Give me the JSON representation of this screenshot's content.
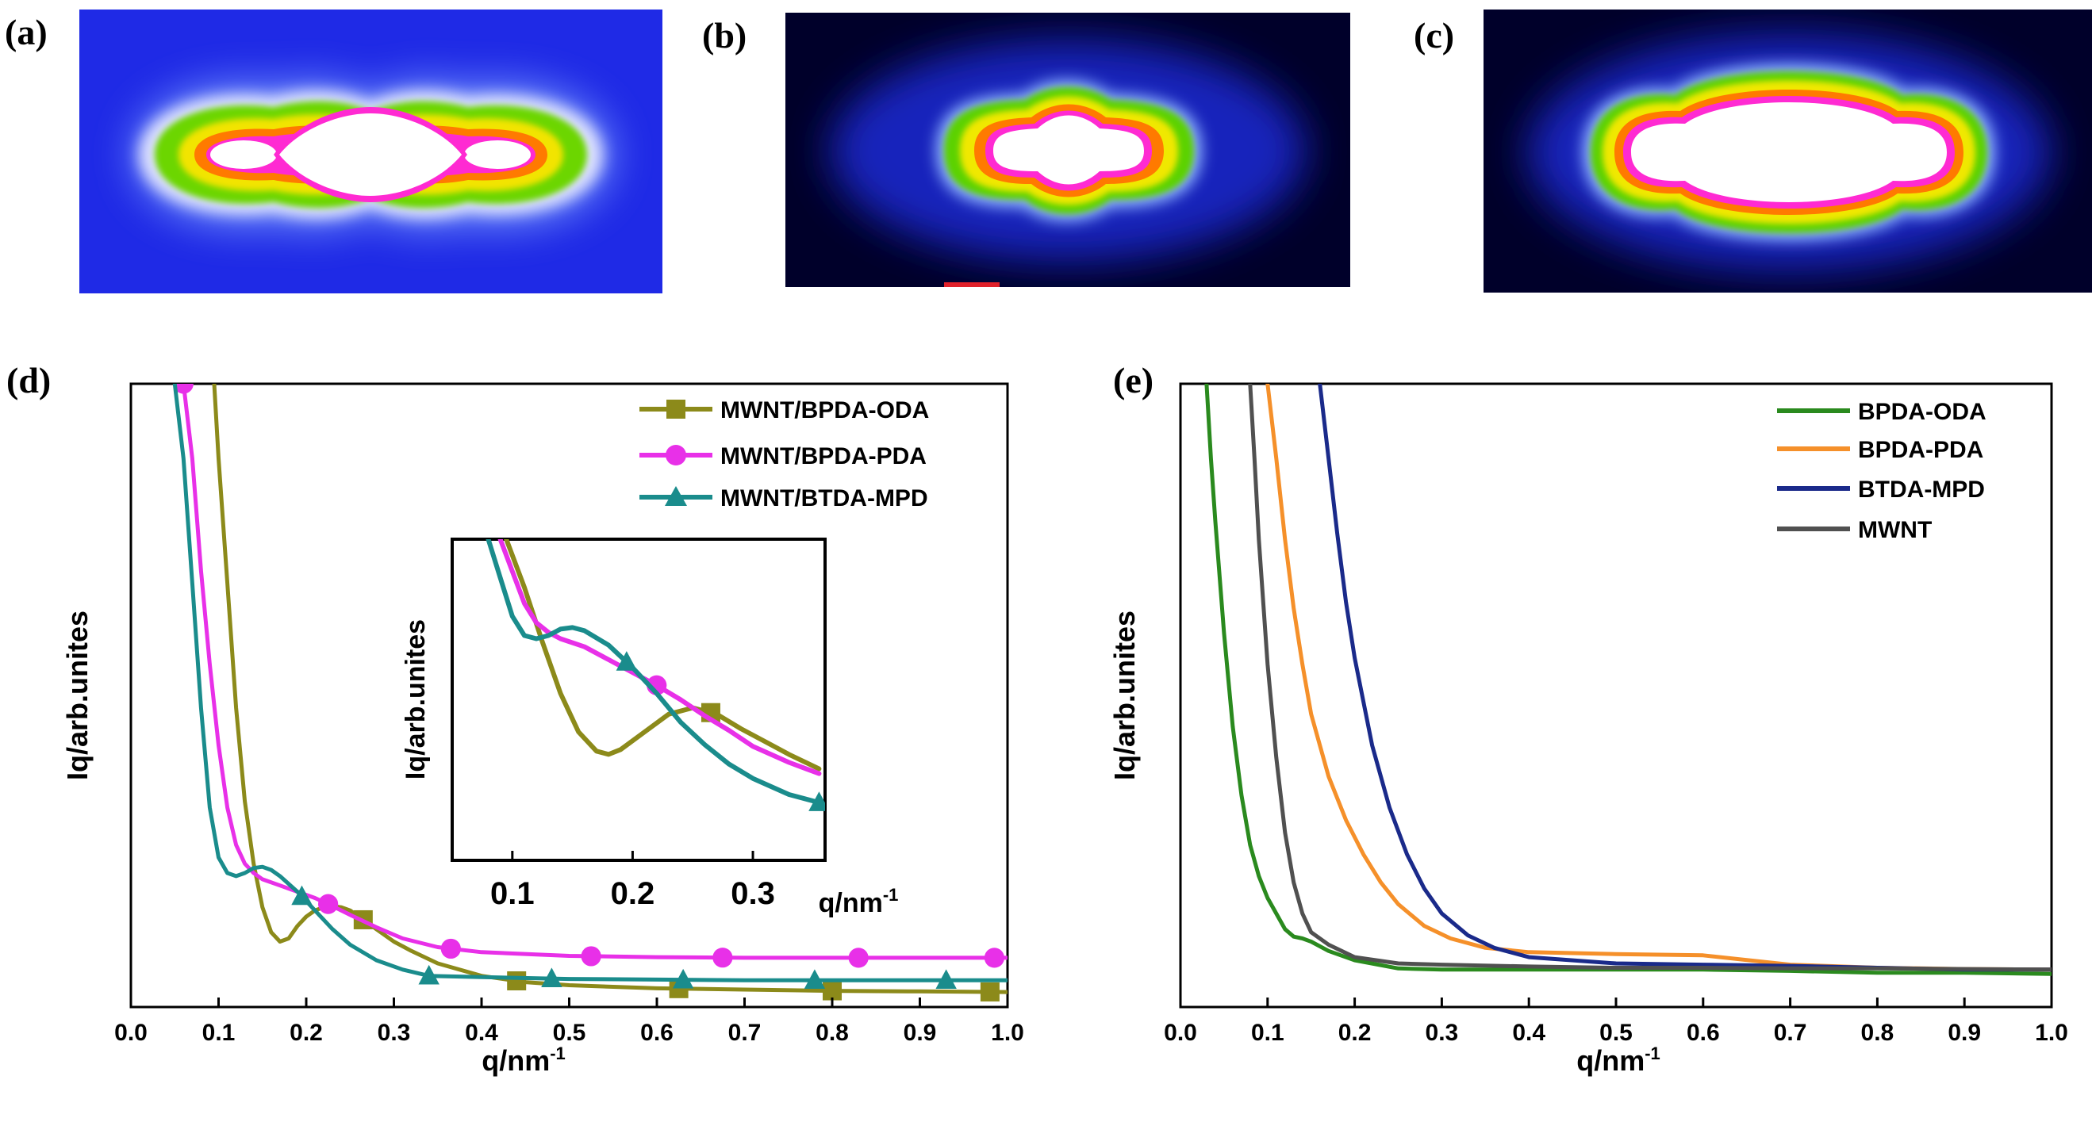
{
  "panels": {
    "a": {
      "label": "(a)"
    },
    "b": {
      "label": "(b)"
    },
    "c": {
      "label": "(c)"
    },
    "d": {
      "label": "(d)"
    },
    "e": {
      "label": "(e)"
    }
  },
  "chart_data": [
    {
      "id": "d",
      "type": "line",
      "title": "",
      "xlabel": "q/nm",
      "xlabel_sup": "-1",
      "ylabel": "Iq/arb.unites",
      "xlim": [
        0.0,
        1.0
      ],
      "ylim": [
        0,
        100
      ],
      "xticks": [
        "0.0",
        "0.1",
        "0.2",
        "0.3",
        "0.4",
        "0.5",
        "0.6",
        "0.7",
        "0.8",
        "0.9",
        "1.0"
      ],
      "legend_position": "top-right",
      "series": [
        {
          "name": "MWNT/BPDA-ODA",
          "color": "#8c8a1a",
          "marker": "square",
          "x": [
            0.095,
            0.1,
            0.11,
            0.12,
            0.13,
            0.14,
            0.15,
            0.16,
            0.17,
            0.18,
            0.19,
            0.2,
            0.21,
            0.22,
            0.23,
            0.24,
            0.25,
            0.26,
            0.27,
            0.28,
            0.3,
            0.32,
            0.35,
            0.4,
            0.45,
            0.5,
            0.6,
            0.7,
            0.8,
            0.9,
            1.0
          ],
          "y": [
            100,
            88,
            68,
            48,
            33,
            23,
            16,
            12,
            10.5,
            11,
            13,
            14.5,
            15.5,
            16,
            16.2,
            16,
            15.5,
            14.5,
            13.5,
            12.5,
            10.5,
            9,
            7,
            5,
            4,
            3.5,
            3,
            2.8,
            2.6,
            2.5,
            2.4
          ],
          "marker_x": [
            0.265,
            0.44,
            0.625,
            0.8,
            0.98
          ]
        },
        {
          "name": "MWNT/BPDA-PDA",
          "color": "#e830e8",
          "marker": "circle",
          "x": [
            0.06,
            0.07,
            0.08,
            0.09,
            0.1,
            0.11,
            0.12,
            0.13,
            0.14,
            0.15,
            0.17,
            0.19,
            0.21,
            0.23,
            0.25,
            0.28,
            0.31,
            0.35,
            0.4,
            0.5,
            0.6,
            0.7,
            0.8,
            0.9,
            1.0
          ],
          "y": [
            100,
            88,
            70,
            55,
            42,
            32,
            26,
            23,
            21.5,
            20.5,
            19.5,
            18.5,
            17.5,
            16.2,
            14.8,
            12.8,
            11,
            9.6,
            8.8,
            8.2,
            8,
            7.9,
            7.9,
            7.9,
            7.9
          ],
          "marker_x": [
            0.06,
            0.225,
            0.365,
            0.525,
            0.675,
            0.83,
            0.985
          ]
        },
        {
          "name": "MWNT/BTDA-MPD",
          "color": "#1a8c8c",
          "marker": "triangle",
          "x": [
            0.05,
            0.06,
            0.07,
            0.08,
            0.09,
            0.1,
            0.11,
            0.12,
            0.13,
            0.14,
            0.15,
            0.16,
            0.17,
            0.19,
            0.21,
            0.23,
            0.25,
            0.28,
            0.31,
            0.34,
            0.4,
            0.5,
            0.6,
            0.7,
            0.8,
            0.9,
            1.0
          ],
          "y": [
            100,
            88,
            68,
            48,
            32,
            24,
            21.5,
            21,
            21.5,
            22.3,
            22.5,
            22,
            21,
            18.5,
            15.5,
            12.5,
            10,
            7.5,
            6,
            5,
            4.8,
            4.5,
            4.4,
            4.3,
            4.3,
            4.3,
            4.3
          ],
          "marker_x": [
            0.195,
            0.34,
            0.48,
            0.63,
            0.78,
            0.93
          ]
        }
      ],
      "inset": {
        "xlabel": "q/nm",
        "xlabel_sup": "-1",
        "ylabel": "Iq/arb.unites",
        "xlim": [
          0.05,
          0.36
        ],
        "ylim": [
          0,
          100
        ],
        "xticks": [
          "0.1",
          "0.2",
          "0.3"
        ],
        "series": [
          {
            "name": "MWNT/BPDA-ODA",
            "color": "#8c8a1a",
            "marker": "square",
            "x": [
              0.095,
              0.11,
              0.125,
              0.14,
              0.155,
              0.17,
              0.18,
              0.19,
              0.21,
              0.23,
              0.25,
              0.27,
              0.29,
              0.31,
              0.33,
              0.355
            ],
            "y": [
              100,
              85,
              68,
              52,
              40,
              34,
              33,
              34.5,
              40,
              45.5,
              47.5,
              45.5,
              41,
              37,
              33,
              28.5
            ],
            "marker_x": [
              0.265
            ]
          },
          {
            "name": "MWNT/BPDA-PDA",
            "color": "#e830e8",
            "marker": "circle",
            "x": [
              0.09,
              0.1,
              0.11,
              0.12,
              0.13,
              0.14,
              0.16,
              0.18,
              0.2,
              0.22,
              0.24,
              0.26,
              0.28,
              0.3,
              0.33,
              0.355
            ],
            "y": [
              100,
              90,
              80,
              74,
              71,
              69,
              66.5,
              62.5,
              58.5,
              54.5,
              50,
              45,
              40.5,
              35.5,
              30.5,
              27
            ],
            "marker_x": [
              0.22
            ]
          },
          {
            "name": "MWNT/BTDA-MPD",
            "color": "#1a8c8c",
            "marker": "triangle",
            "x": [
              0.08,
              0.09,
              0.1,
              0.11,
              0.12,
              0.13,
              0.14,
              0.15,
              0.16,
              0.18,
              0.2,
              0.22,
              0.24,
              0.26,
              0.28,
              0.3,
              0.33,
              0.355
            ],
            "y": [
              100,
              88,
              76,
              70,
              69,
              70,
              72,
              72.5,
              71.5,
              67,
              60,
              52,
              43,
              36,
              30,
              25.5,
              20.5,
              18
            ],
            "marker_x": [
              0.195,
              0.355
            ]
          }
        ]
      }
    },
    {
      "id": "e",
      "type": "line",
      "title": "",
      "xlabel": "q/nm",
      "xlabel_sup": "-1",
      "ylabel": "Iq/arb.unites",
      "xlim": [
        0.0,
        1.0
      ],
      "ylim": [
        0,
        100
      ],
      "xticks": [
        "0.0",
        "0.1",
        "0.2",
        "0.3",
        "0.4",
        "0.5",
        "0.6",
        "0.7",
        "0.8",
        "0.9",
        "1.0"
      ],
      "legend_position": "top-right",
      "series": [
        {
          "name": "BPDA-ODA",
          "color": "#2a8a1e",
          "x": [
            0.03,
            0.035,
            0.04,
            0.05,
            0.06,
            0.07,
            0.08,
            0.09,
            0.1,
            0.11,
            0.12,
            0.13,
            0.14,
            0.15,
            0.17,
            0.2,
            0.25,
            0.3,
            0.4,
            0.5,
            0.6,
            0.7,
            0.8,
            0.9,
            1.0
          ],
          "y": [
            100,
            88,
            78,
            60,
            45,
            34,
            26,
            21,
            17.5,
            15,
            12.5,
            11.3,
            11,
            10.5,
            9,
            7.5,
            6.2,
            6,
            6,
            6,
            6,
            5.8,
            5.5,
            5.5,
            5.3
          ]
        },
        {
          "name": "BPDA-PDA",
          "color": "#f5902a",
          "x": [
            0.1,
            0.11,
            0.12,
            0.13,
            0.14,
            0.15,
            0.17,
            0.19,
            0.21,
            0.23,
            0.25,
            0.28,
            0.31,
            0.35,
            0.4,
            0.5,
            0.6,
            0.7,
            0.8,
            0.9,
            1.0
          ],
          "y": [
            100,
            88,
            75,
            64,
            55,
            47,
            37,
            30,
            24.5,
            20,
            16.5,
            13,
            11,
            9.5,
            8.8,
            8.5,
            8.3,
            6.8,
            6.3,
            6.1,
            6
          ]
        },
        {
          "name": "BTDA-MPD",
          "color": "#1a2a8a",
          "x": [
            0.16,
            0.17,
            0.18,
            0.19,
            0.2,
            0.22,
            0.24,
            0.26,
            0.28,
            0.3,
            0.33,
            0.36,
            0.4,
            0.5,
            0.6,
            0.7,
            0.8,
            0.9,
            1.0
          ],
          "y": [
            100,
            88,
            76,
            65,
            56,
            42,
            32,
            24.5,
            19,
            15,
            11.5,
            9.5,
            8,
            7,
            6.8,
            6.6,
            6.3,
            6,
            6
          ]
        },
        {
          "name": "MWNT",
          "color": "#505050",
          "x": [
            0.08,
            0.085,
            0.09,
            0.1,
            0.11,
            0.12,
            0.13,
            0.14,
            0.15,
            0.17,
            0.2,
            0.25,
            0.3,
            0.4,
            0.5,
            0.6,
            0.7,
            0.8,
            0.9,
            1.0
          ],
          "y": [
            100,
            88,
            75,
            55,
            40,
            28,
            20,
            15,
            12,
            10,
            8,
            7,
            6.8,
            6.5,
            6.3,
            6.3,
            6.2,
            6.2,
            6.1,
            6
          ]
        }
      ]
    }
  ]
}
